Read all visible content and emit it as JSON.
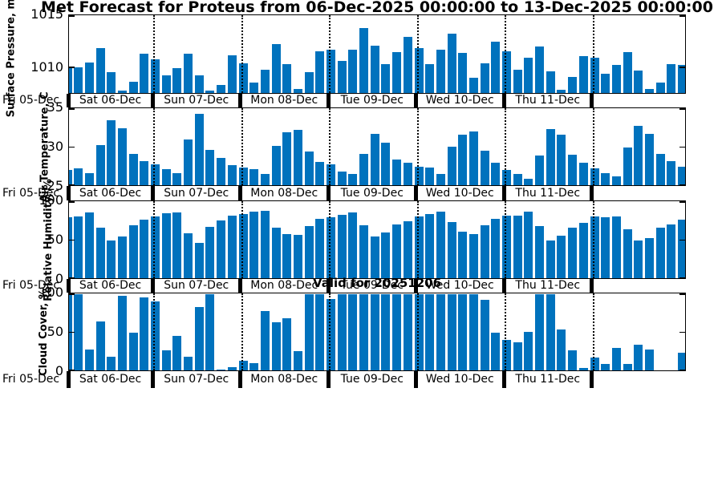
{
  "title": "Met Forecast for Proteus from 06-Dec-2025 00:00:00 to 13-Dec-2025 00:00:00",
  "annotation": "Valid for 20251206",
  "colors": {
    "bar": "#0072BD",
    "axis": "#000000",
    "background": "#ffffff"
  },
  "x_axis": {
    "left_label": "Fri 05-Dec",
    "day_labels": [
      "Sat 06-Dec",
      "Sun 07-Dec",
      "Mon 08-Dec",
      "Tue 09-Dec",
      "Wed 10-Dec",
      "Thu 11-Dec"
    ],
    "bars_per_day": 8,
    "step_hours": 3
  },
  "chart_data": [
    {
      "type": "bar",
      "ylabel": "Surface Pressure, mb",
      "ylim": [
        1007.5,
        1015
      ],
      "yticks": [
        1010,
        1015
      ],
      "grid": "dotted-day-boundaries",
      "values": [
        1010.1,
        1010.0,
        1010.5,
        1011.9,
        1009.5,
        1007.7,
        1008.6,
        1011.3,
        1010.8,
        1009.2,
        1009.9,
        1011.3,
        1009.2,
        1007.7,
        1008.3,
        1011.2,
        1010.4,
        1008.5,
        1009.8,
        1012.3,
        1010.3,
        1007.9,
        1009.5,
        1011.6,
        1011.7,
        1010.6,
        1011.7,
        1013.8,
        1012.1,
        1010.3,
        1011.5,
        1013.0,
        1011.9,
        1010.3,
        1011.7,
        1013.3,
        1011.4,
        1009.0,
        1010.4,
        1012.5,
        1011.6,
        1009.8,
        1010.9,
        1012.0,
        1009.6,
        1007.8,
        1009.1,
        1011.1,
        1010.9,
        1009.4,
        1010.2,
        1011.5,
        1009.7,
        1007.9,
        1008.5,
        1010.3,
        1010.2
      ]
    },
    {
      "type": "bar",
      "ylabel": "Air Temperature, C",
      "ylim": [
        25,
        35
      ],
      "yticks": [
        25,
        30,
        35
      ],
      "grid": "dotted-day-boundaries",
      "values": [
        27.0,
        27.2,
        26.6,
        30.3,
        33.5,
        32.5,
        29.1,
        28.2,
        27.7,
        27.1,
        26.6,
        31.0,
        34.4,
        29.6,
        28.6,
        27.6,
        27.3,
        27.1,
        26.5,
        30.2,
        32.0,
        32.3,
        29.4,
        28.1,
        27.7,
        26.8,
        26.5,
        29.1,
        31.7,
        30.6,
        28.4,
        28.0,
        27.4,
        27.3,
        26.5,
        30.1,
        31.6,
        32.1,
        29.5,
        27.9,
        27.0,
        26.5,
        25.8,
        28.9,
        32.4,
        31.6,
        29.0,
        28.0,
        27.2,
        26.6,
        26.2,
        29.9,
        32.8,
        31.7,
        29.1,
        28.2,
        27.4
      ]
    },
    {
      "type": "bar",
      "ylabel": "Relative Humidity, %",
      "ylim": [
        0,
        100
      ],
      "yticks": [
        0,
        50,
        100
      ],
      "grid": "dotted-day-boundaries",
      "values": [
        80,
        81,
        86,
        66,
        49,
        55,
        69,
        77,
        81,
        85,
        86,
        59,
        46,
        67,
        76,
        82,
        84,
        87,
        88,
        66,
        58,
        57,
        68,
        78,
        80,
        83,
        86,
        70,
        55,
        60,
        71,
        75,
        81,
        84,
        87,
        74,
        61,
        58,
        69,
        78,
        82,
        82,
        87,
        68,
        50,
        56,
        66,
        73,
        81,
        80,
        81,
        64,
        49,
        53,
        66,
        71,
        77
      ]
    },
    {
      "type": "bar",
      "ylabel": "Cloud Cover, %",
      "ylim": [
        0,
        100
      ],
      "yticks": [
        0,
        50,
        100
      ],
      "grid": "dotted-day-boundaries",
      "values": [
        100,
        100,
        27,
        64,
        18,
        98,
        50,
        96,
        91,
        26,
        45,
        18,
        83,
        100,
        1,
        4,
        13,
        9,
        78,
        63,
        68,
        25,
        100,
        100,
        94,
        100,
        100,
        100,
        100,
        100,
        100,
        100,
        100,
        100,
        100,
        100,
        100,
        100,
        93,
        50,
        40,
        37,
        51,
        100,
        100,
        54,
        26,
        3,
        17,
        8,
        29,
        8,
        34,
        27,
        0,
        0,
        23
      ]
    }
  ]
}
